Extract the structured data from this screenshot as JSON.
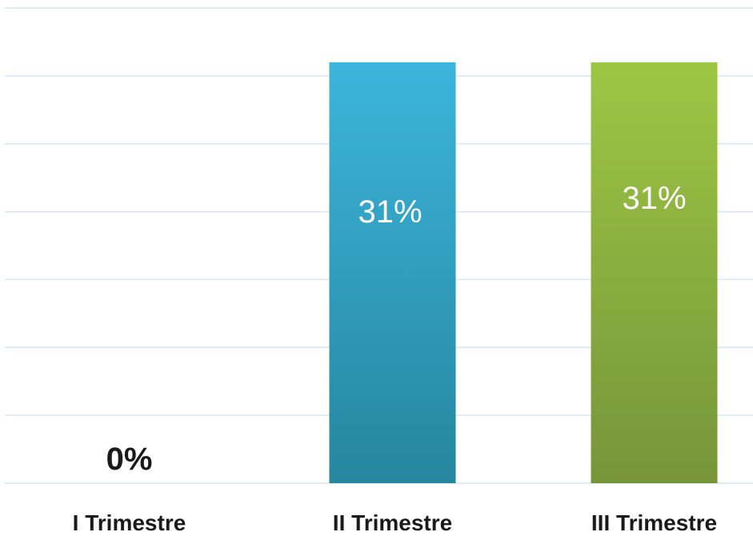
{
  "chart_data": {
    "type": "bar",
    "title": "",
    "xlabel": "",
    "ylabel": "",
    "categories": [
      "I Trimestre",
      "II Trimestre",
      "III Trimestre"
    ],
    "values": [
      0,
      31,
      31
    ],
    "data_labels": [
      "0%",
      "31%",
      "31%"
    ],
    "ylim": [
      0,
      35
    ],
    "grid": true,
    "legend": "none",
    "colors": {
      "bars": [
        "#3cb5dc",
        "#3cb5dc",
        "#9dc644"
      ],
      "bars_dark": [
        "#26869e",
        "#26869e",
        "#76953a"
      ],
      "gridline": "#d9e6ef",
      "label_on_bar": "#ffffff",
      "label_outside": "#1a1a1a"
    }
  }
}
